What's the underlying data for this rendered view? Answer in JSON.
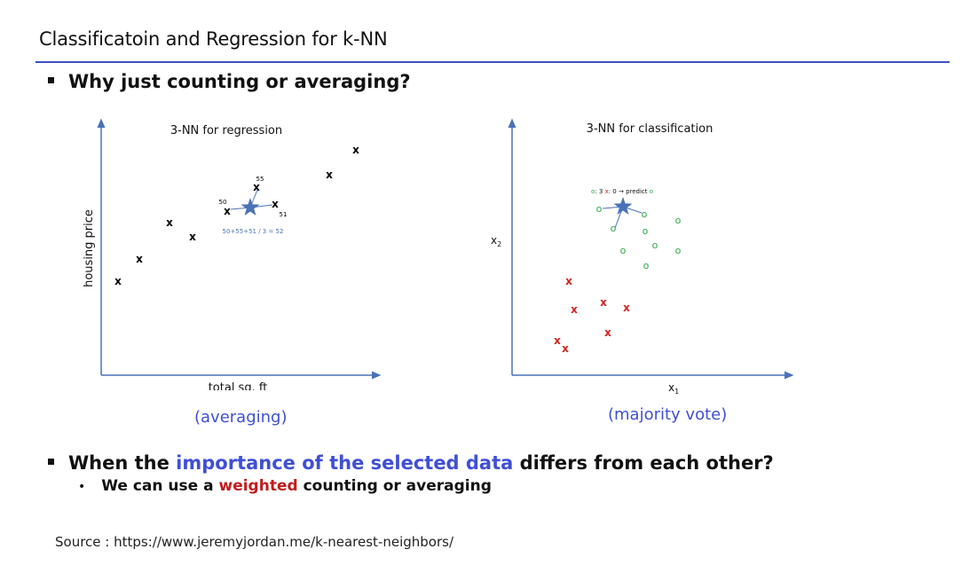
{
  "slide": {
    "title": "Classificatoin and Regression for k-NN",
    "bullet1": "Why just counting or averaging?",
    "bullet2": {
      "prefix": "When the ",
      "highlight": "importance of the selected data",
      "suffix": " differs from each other?"
    },
    "sub_bullet": {
      "prefix": "We can use a ",
      "highlight": "weighted",
      "suffix": " counting or averaging"
    },
    "source": "Source : https://www.jeremyjordan.me/k-nearest-neighbors/",
    "colors": {
      "rule": "#3b4fc4",
      "highlight_blue": "#3f4fd6",
      "highlight_red": "#c21b1b"
    }
  },
  "left_diagram": {
    "title": "3-NN for regression",
    "xlabel": "total sq. ft",
    "ylabel": "housing price",
    "caption": "(averaging)",
    "marker": "x",
    "neighbor_labels": [
      "50",
      "55",
      "51"
    ],
    "formula": "50+55+51 / 3 = 52"
  },
  "right_diagram": {
    "title": "3-NN for classification",
    "xlabel": "x",
    "xlabel_sub": "1",
    "ylabel": "x",
    "ylabel_sub": "2",
    "caption": "(majority vote)",
    "vote": {
      "o_label": "o",
      "o_count": ": 3 ",
      "x_label": "x",
      "x_count": ": 0 → predict ",
      "result": "o"
    },
    "class_o_marker": "o",
    "class_x_marker": "x",
    "colors": {
      "class_o": "#2ca84a",
      "class_x": "#d42020",
      "star": "#4a72b8"
    }
  }
}
